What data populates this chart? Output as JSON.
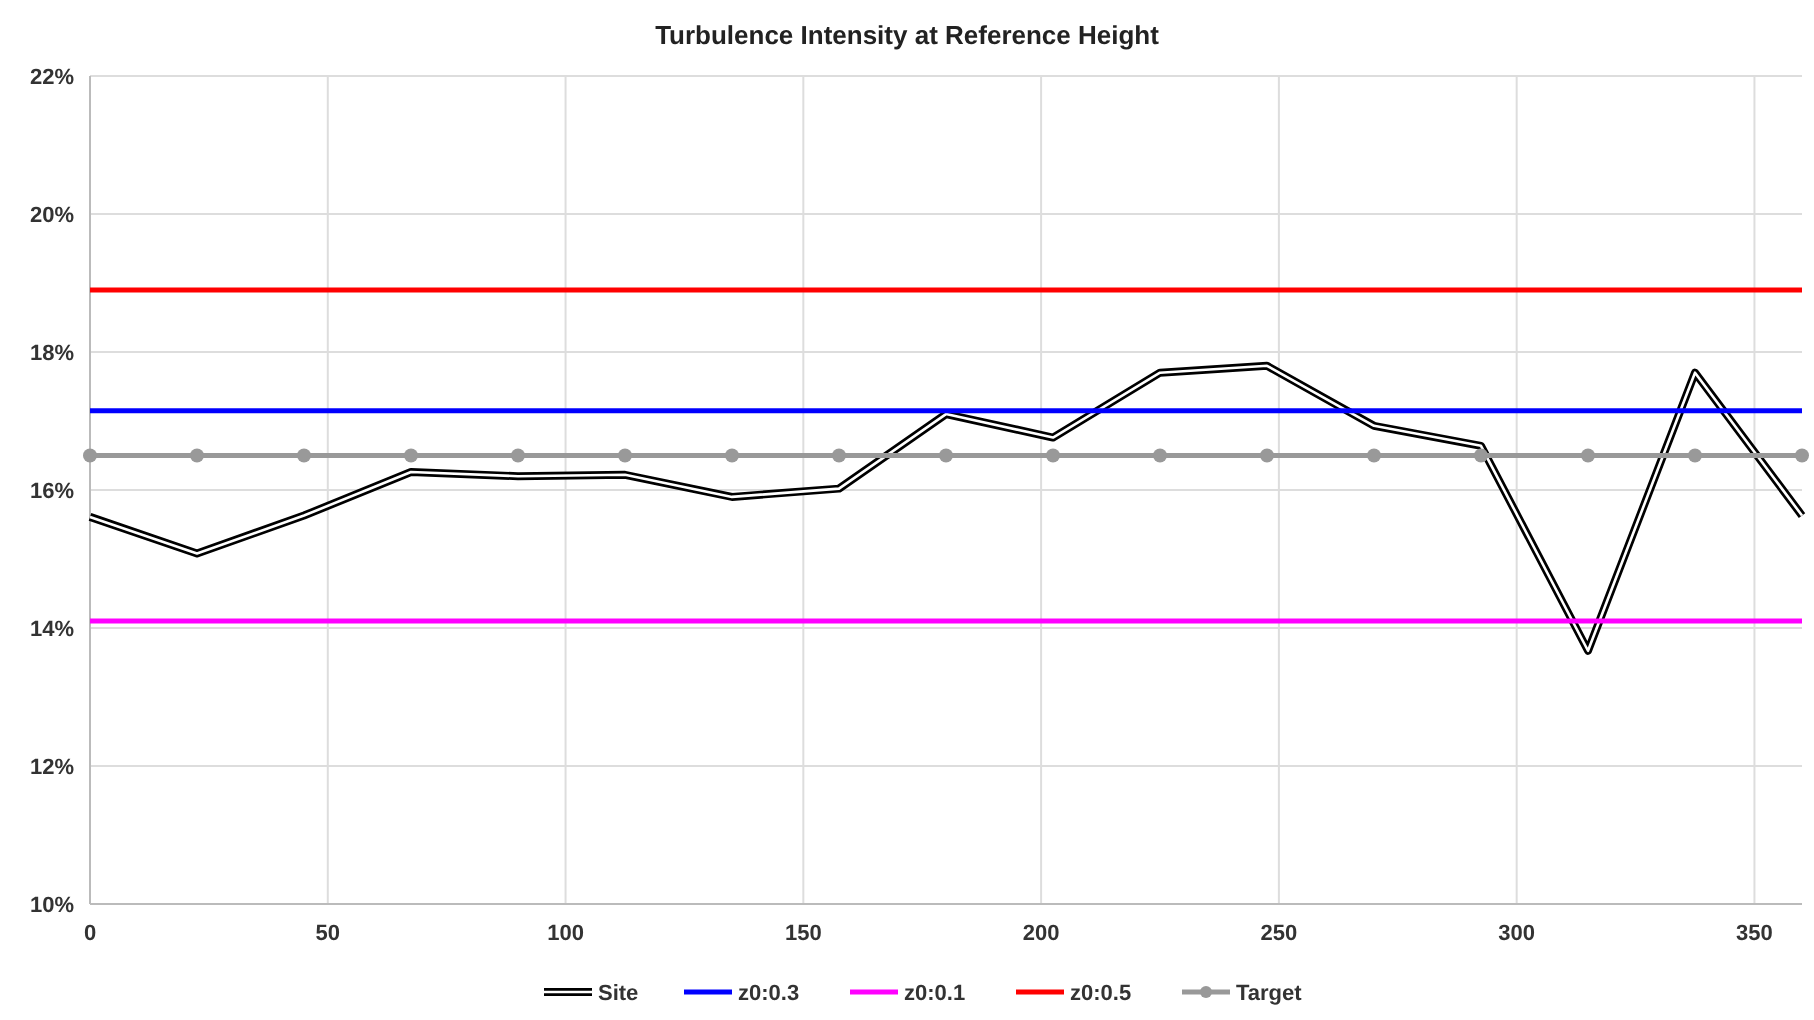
{
  "chart_data": {
    "type": "line",
    "title": "Turbulence Intensity at Reference Height",
    "xlim": [
      0,
      360
    ],
    "xticks": [
      0,
      50,
      100,
      150,
      200,
      250,
      300,
      350
    ],
    "ylim": [
      10,
      22
    ],
    "yticks": [
      {
        "value": 10,
        "label": "10%"
      },
      {
        "value": 12,
        "label": "12%"
      },
      {
        "value": 14,
        "label": "14%"
      },
      {
        "value": 16,
        "label": "16%"
      },
      {
        "value": 18,
        "label": "18%"
      },
      {
        "value": 20,
        "label": "20%"
      },
      {
        "value": 22,
        "label": "22%"
      }
    ],
    "grid": true,
    "legend": "bottom",
    "series": [
      {
        "name": "Site",
        "color": "#000000",
        "marker": "none",
        "x": [
          0,
          22.5,
          45,
          67.5,
          90,
          112.5,
          135,
          157.5,
          180,
          202.5,
          225,
          247.5,
          270,
          292.5,
          315,
          337.5,
          360
        ],
        "values": [
          15.61,
          15.08,
          15.63,
          16.26,
          16.2,
          16.22,
          15.9,
          16.02,
          17.1,
          16.76,
          17.7,
          17.8,
          16.93,
          16.64,
          13.67,
          17.7,
          15.63
        ]
      },
      {
        "name": "z0:0.3",
        "color": "#0000ff",
        "marker": "none",
        "x": [
          0,
          360
        ],
        "values": [
          17.15,
          17.15
        ]
      },
      {
        "name": "z0:0.1",
        "color": "#ff00ff",
        "marker": "none",
        "x": [
          0,
          360
        ],
        "values": [
          14.1,
          14.1
        ]
      },
      {
        "name": "z0:0.5",
        "color": "#ff0000",
        "marker": "none",
        "x": [
          0,
          360
        ],
        "values": [
          18.9,
          18.9
        ]
      },
      {
        "name": "Target",
        "color": "#999999",
        "marker": "circle",
        "x": [
          0,
          22.5,
          45,
          67.5,
          90,
          112.5,
          135,
          157.5,
          180,
          202.5,
          225,
          247.5,
          270,
          292.5,
          315,
          337.5,
          360
        ],
        "values": [
          16.5,
          16.5,
          16.5,
          16.5,
          16.5,
          16.5,
          16.5,
          16.5,
          16.5,
          16.5,
          16.5,
          16.5,
          16.5,
          16.5,
          16.5,
          16.5,
          16.5
        ]
      }
    ]
  }
}
